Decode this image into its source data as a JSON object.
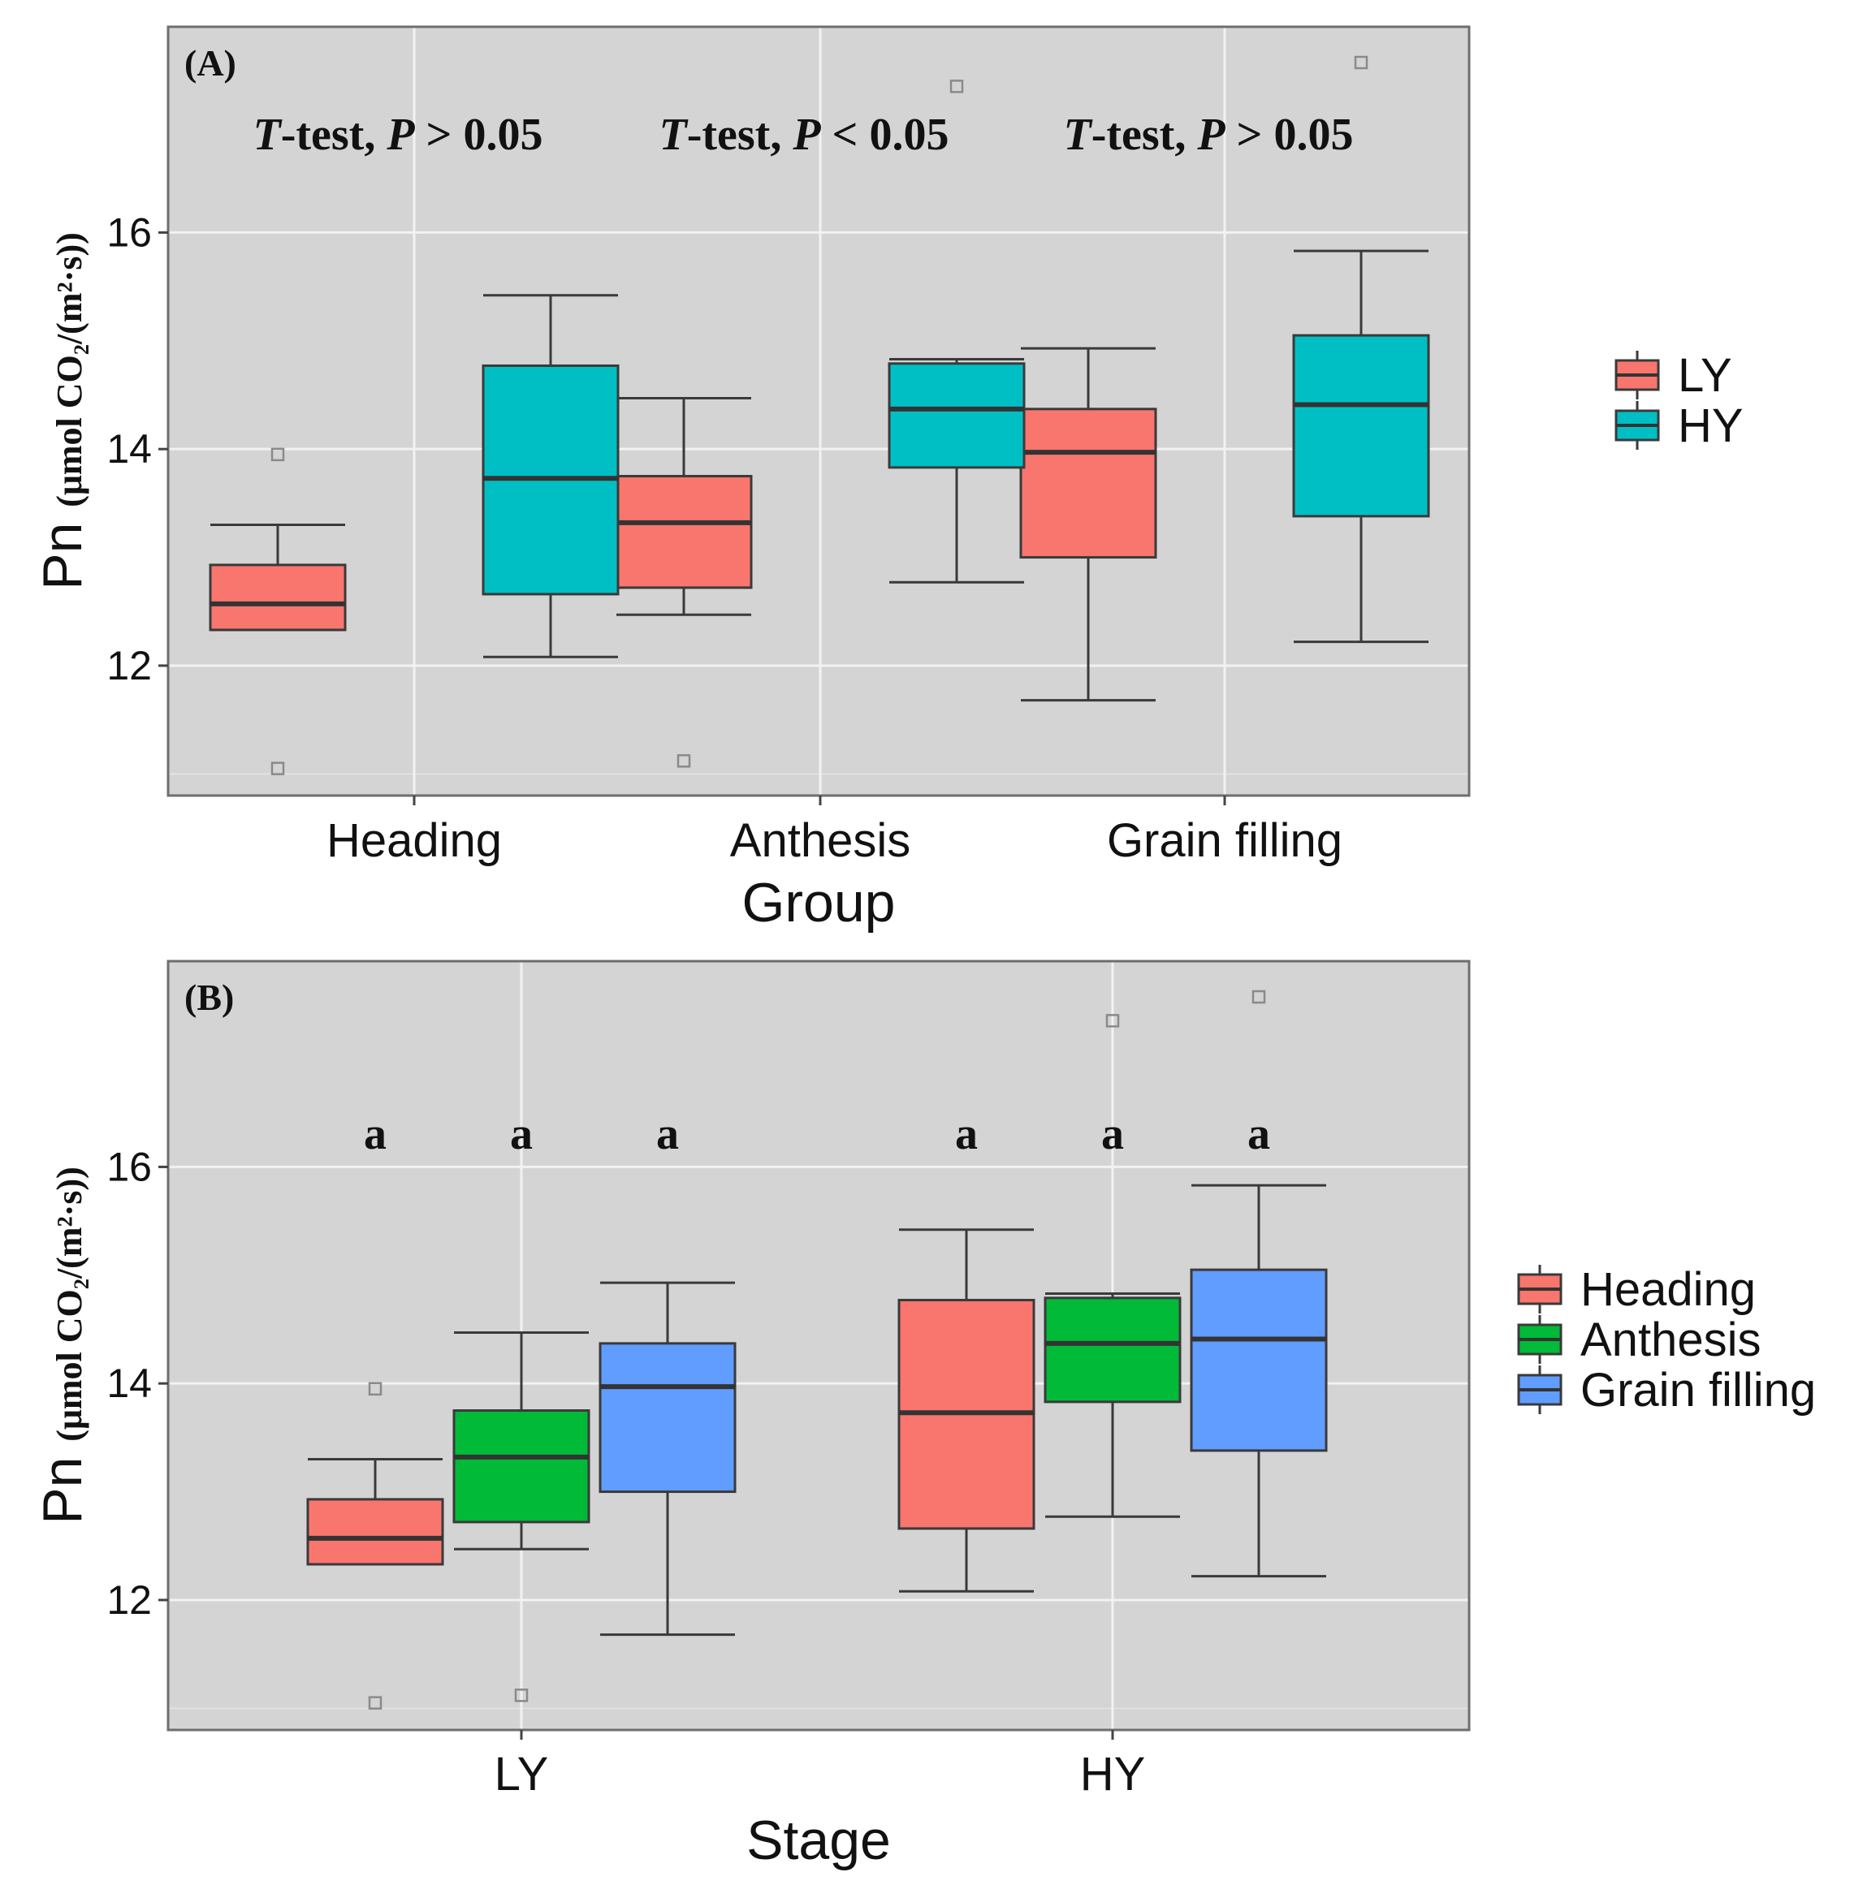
{
  "chart_data": [
    {
      "type": "boxplot",
      "panel_label": "(A)",
      "xlabel": "Group",
      "ylabel": {
        "main": "Pn",
        "unit": "(μmol CO₂/(m²·s))"
      },
      "ylim": [
        10.8,
        17.9
      ],
      "yticks": [
        12,
        14,
        16
      ],
      "grid": true,
      "legend_position": "right",
      "categories": [
        "Heading",
        "Anthesis",
        "Grain filling"
      ],
      "series": [
        {
          "name": "LY",
          "color": "#F8766D",
          "boxes": [
            {
              "whisker_low": 12.33,
              "q1": 12.33,
              "median": 12.57,
              "q3": 12.93,
              "whisker_high": 13.3,
              "outliers": [
                13.95,
                11.05
              ]
            },
            {
              "whisker_low": 12.47,
              "q1": 12.72,
              "median": 13.32,
              "q3": 13.75,
              "whisker_high": 14.47,
              "outliers": [
                11.12
              ]
            },
            {
              "whisker_low": 11.68,
              "q1": 13.0,
              "median": 13.97,
              "q3": 14.37,
              "whisker_high": 14.93,
              "outliers": []
            }
          ]
        },
        {
          "name": "HY",
          "color": "#00BFC4",
          "boxes": [
            {
              "whisker_low": 12.08,
              "q1": 12.66,
              "median": 13.73,
              "q3": 14.77,
              "whisker_high": 15.42,
              "outliers": []
            },
            {
              "whisker_low": 12.77,
              "q1": 13.83,
              "median": 14.37,
              "q3": 14.79,
              "whisker_high": 14.83,
              "outliers": [
                17.35
              ]
            },
            {
              "whisker_low": 12.22,
              "q1": 13.38,
              "median": 14.41,
              "q3": 15.05,
              "whisker_high": 15.83,
              "outliers": [
                17.57
              ]
            }
          ]
        }
      ],
      "annotations": [
        {
          "category": "Heading",
          "prefix": "T",
          "middle": "-test, ",
          "p": "P",
          "suffix": " > 0.05"
        },
        {
          "category": "Anthesis",
          "prefix": "T",
          "middle": "-test, ",
          "p": "P",
          "suffix": " < 0.05"
        },
        {
          "category": "Grain filling",
          "prefix": "T",
          "middle": "-test, ",
          "p": "P",
          "suffix": " > 0.05"
        }
      ]
    },
    {
      "type": "boxplot",
      "panel_label": "(B)",
      "xlabel": "Stage",
      "ylabel": {
        "main": "Pn",
        "unit": "(μmol CO₂/(m²·s))"
      },
      "ylim": [
        10.8,
        17.9
      ],
      "yticks": [
        12,
        14,
        16
      ],
      "grid": true,
      "legend_position": "right",
      "categories": [
        "LY",
        "HY"
      ],
      "series": [
        {
          "name": "Heading",
          "color": "#F8766D",
          "boxes": [
            {
              "whisker_low": 12.33,
              "q1": 12.33,
              "median": 12.57,
              "q3": 12.93,
              "whisker_high": 13.3,
              "outliers": [
                13.95,
                11.05
              ]
            },
            {
              "whisker_low": 12.08,
              "q1": 12.66,
              "median": 13.73,
              "q3": 14.77,
              "whisker_high": 15.42,
              "outliers": []
            }
          ]
        },
        {
          "name": "Anthesis",
          "color": "#00BA38",
          "boxes": [
            {
              "whisker_low": 12.47,
              "q1": 12.72,
              "median": 13.32,
              "q3": 13.75,
              "whisker_high": 14.47,
              "outliers": [
                11.12
              ]
            },
            {
              "whisker_low": 12.77,
              "q1": 13.83,
              "median": 14.37,
              "q3": 14.79,
              "whisker_high": 14.83,
              "outliers": [
                17.35
              ]
            }
          ]
        },
        {
          "name": "Grain filling",
          "color": "#619CFF",
          "boxes": [
            {
              "whisker_low": 11.68,
              "q1": 13.0,
              "median": 13.97,
              "q3": 14.37,
              "whisker_high": 14.93,
              "outliers": []
            },
            {
              "whisker_low": 12.22,
              "q1": 13.38,
              "median": 14.41,
              "q3": 15.05,
              "whisker_high": 15.83,
              "outliers": [
                17.57
              ]
            }
          ]
        }
      ],
      "letters": [
        {
          "group": "LY",
          "series": "Heading",
          "text": "a"
        },
        {
          "group": "LY",
          "series": "Anthesis",
          "text": "a"
        },
        {
          "group": "LY",
          "series": "Grain filling",
          "text": "a"
        },
        {
          "group": "HY",
          "series": "Heading",
          "text": "a"
        },
        {
          "group": "HY",
          "series": "Anthesis",
          "text": "a"
        },
        {
          "group": "HY",
          "series": "Grain filling",
          "text": "a"
        }
      ]
    }
  ]
}
